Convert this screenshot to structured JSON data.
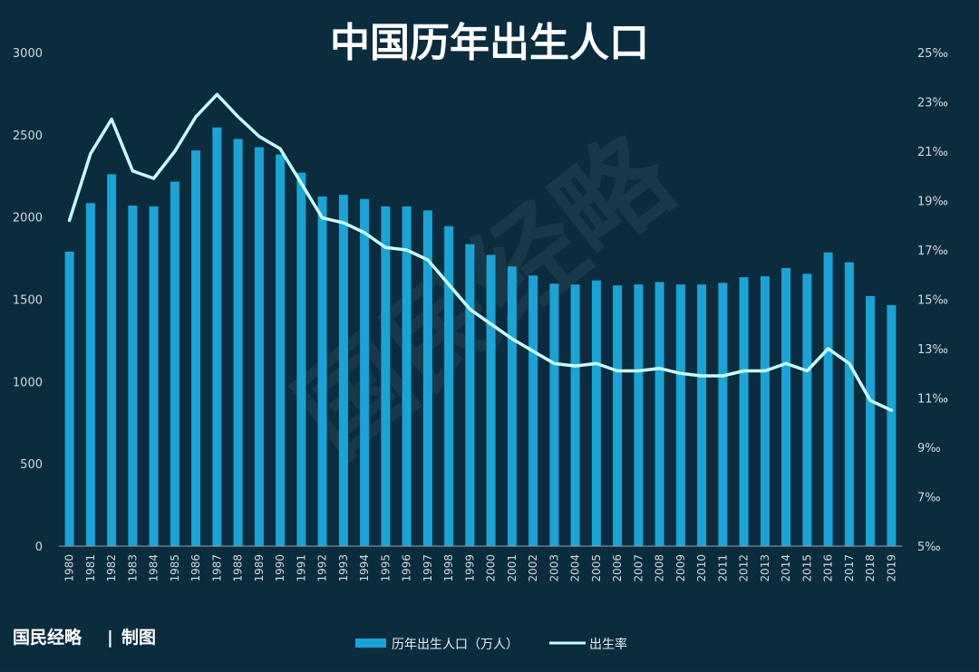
{
  "credit": {
    "brand": "国民经略",
    "separator": "|",
    "suffix": "制图"
  },
  "colors": {
    "background": "#0b2c3d",
    "bar": "#1aa3d6",
    "line": "#c8fbff"
  },
  "chart_data": {
    "type": "bar",
    "title": "中国历年出生人口",
    "categories": [
      "1980",
      "1981",
      "1982",
      "1983",
      "1984",
      "1985",
      "1986",
      "1987",
      "1988",
      "1989",
      "1990",
      "1991",
      "1992",
      "1993",
      "1994",
      "1995",
      "1996",
      "1997",
      "1998",
      "1999",
      "2000",
      "2001",
      "2002",
      "2003",
      "2004",
      "2005",
      "2006",
      "2007",
      "2008",
      "2009",
      "2010",
      "2011",
      "2012",
      "2013",
      "2014",
      "2015",
      "2016",
      "2017",
      "2018",
      "2019"
    ],
    "left_axis": {
      "ylim": [
        0,
        3000
      ],
      "ticks": [
        "0",
        "500",
        "1000",
        "1500",
        "2000",
        "2500",
        "3000"
      ]
    },
    "right_axis": {
      "ylim": [
        5,
        25
      ],
      "ticks": [
        "5‰",
        "7‰",
        "9‰",
        "11‰",
        "13‰",
        "15‰",
        "17‰",
        "19‰",
        "21‰",
        "23‰",
        "25‰"
      ]
    },
    "series": [
      {
        "name": "历年出生人口（万人）",
        "type": "bar",
        "axis": "left",
        "values": [
          1790,
          2085,
          2260,
          2070,
          2065,
          2215,
          2405,
          2545,
          2475,
          2425,
          2380,
          2270,
          2125,
          2135,
          2110,
          2065,
          2065,
          2040,
          1945,
          1835,
          1770,
          1700,
          1645,
          1595,
          1590,
          1615,
          1585,
          1590,
          1605,
          1590,
          1590,
          1600,
          1635,
          1640,
          1690,
          1655,
          1785,
          1725,
          1520,
          1465
        ]
      },
      {
        "name": "出生率",
        "type": "line",
        "axis": "right",
        "values": [
          18.2,
          20.9,
          22.3,
          20.2,
          19.9,
          21.0,
          22.4,
          23.3,
          22.4,
          21.6,
          21.1,
          19.7,
          18.3,
          18.1,
          17.7,
          17.1,
          17.0,
          16.6,
          15.6,
          14.6,
          14.0,
          13.4,
          12.9,
          12.4,
          12.3,
          12.4,
          12.1,
          12.1,
          12.2,
          12.0,
          11.9,
          11.9,
          12.1,
          12.1,
          12.4,
          12.1,
          13.0,
          12.4,
          10.9,
          10.5
        ]
      }
    ],
    "legend": "bottom-center",
    "watermark": "国民经略"
  }
}
